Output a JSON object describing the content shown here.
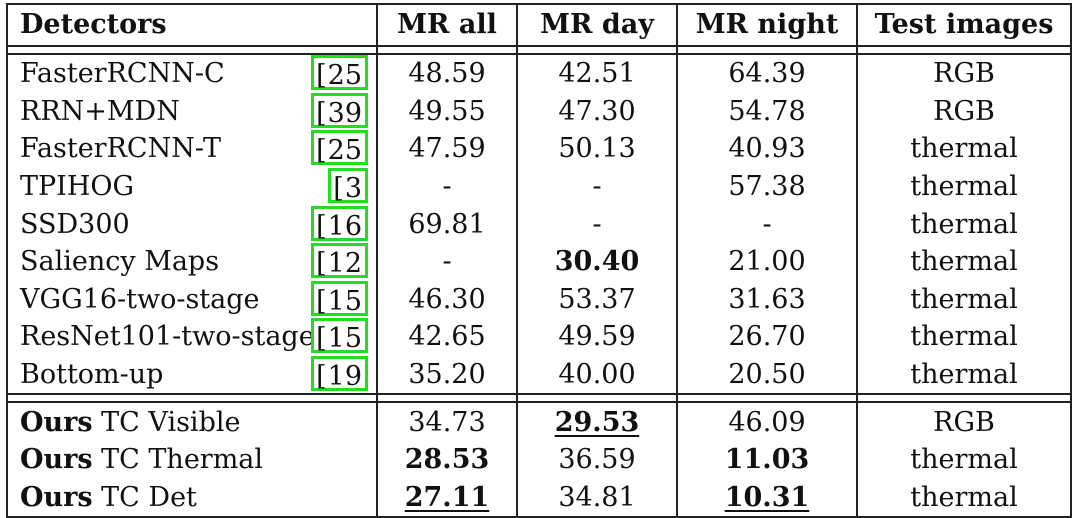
{
  "columns": [
    "Detectors",
    "MR all",
    "MR day",
    "MR night",
    "Test images"
  ],
  "cite_bracket": "[",
  "baselines": [
    {
      "name": "FasterRCNN-C",
      "cite": "25",
      "mr_all": "48.59",
      "mr_day": "42.51",
      "mr_night": "64.39",
      "test": "RGB"
    },
    {
      "name": "RRN+MDN",
      "cite": "39",
      "mr_all": "49.55",
      "mr_day": "47.30",
      "mr_night": "54.78",
      "test": "RGB"
    },
    {
      "name": "FasterRCNN-T",
      "cite": "25",
      "mr_all": "47.59",
      "mr_day": "50.13",
      "mr_night": "40.93",
      "test": "thermal"
    },
    {
      "name": "TPIHOG",
      "cite": "3",
      "mr_all": "-",
      "mr_day": "-",
      "mr_night": "57.38",
      "test": "thermal"
    },
    {
      "name": "SSD300",
      "cite": "16",
      "mr_all": "69.81",
      "mr_day": "-",
      "mr_night": "-",
      "test": "thermal"
    },
    {
      "name": "Saliency Maps",
      "cite": "12",
      "mr_all": "-",
      "mr_day": "30.40",
      "mr_night": "21.00",
      "test": "thermal"
    },
    {
      "name": "VGG16-two-stage",
      "cite": "15",
      "mr_all": "46.30",
      "mr_day": "53.37",
      "mr_night": "31.63",
      "test": "thermal"
    },
    {
      "name": "ResNet101-two-stage",
      "cite": "15",
      "mr_all": "42.65",
      "mr_day": "49.59",
      "mr_night": "26.70",
      "test": "thermal"
    },
    {
      "name": "Bottom-up",
      "cite": "19",
      "mr_all": "35.20",
      "mr_day": "40.00",
      "mr_night": "20.50",
      "test": "thermal"
    }
  ],
  "ours": [
    {
      "prefix": "Ours",
      "name": "TC Visible",
      "mr_all": "34.73",
      "mr_day": "29.53",
      "mr_night": "46.09",
      "test": "RGB"
    },
    {
      "prefix": "Ours",
      "name": "TC Thermal",
      "mr_all": "28.53",
      "mr_day": "36.59",
      "mr_night": "11.03",
      "test": "thermal"
    },
    {
      "prefix": "Ours",
      "name": "TC Det",
      "mr_all": "27.11",
      "mr_day": "34.81",
      "mr_night": "10.31",
      "test": "thermal"
    }
  ],
  "highlight_color": "#22dd22"
}
